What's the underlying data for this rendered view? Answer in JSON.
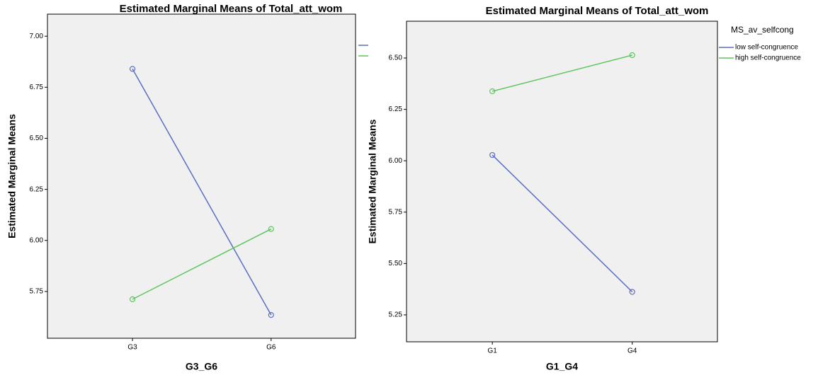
{
  "chart_data": [
    {
      "type": "line",
      "title": "Estimated Marginal Means of Total_att_wom",
      "x_label": "G3_G6",
      "y_label": "Estimated Marginal Means",
      "categories": [
        "G3",
        "G6"
      ],
      "series": [
        {
          "color": "#5b6fc2",
          "values": [
            6.84,
            5.635
          ]
        },
        {
          "color": "#5ec65e",
          "values": [
            5.712,
            6.056
          ]
        }
      ],
      "ylim": [
        5.521,
        7.108
      ],
      "yticks": [
        {
          "value": 5.75,
          "label": "5.75"
        },
        {
          "value": 6,
          "label": "6.00"
        },
        {
          "value": 6.25,
          "label": "6.25"
        },
        {
          "value": 6.5,
          "label": "6.50"
        },
        {
          "value": 6.75,
          "label": "6.75"
        },
        {
          "value": 7,
          "label": "7.00"
        }
      ],
      "grid": false
    },
    {
      "type": "line",
      "title": "Estimated Marginal Means of Total_att_wom",
      "x_label": "G1_G4",
      "y_label": "Estimated Marginal Means",
      "legend_title": "MS_av_selfcong",
      "categories": [
        "G1",
        "G4"
      ],
      "series": [
        {
          "name": "low self-congruence",
          "color": "#5b6fc2",
          "values": [
            6.028,
            5.362
          ]
        },
        {
          "name": "high self-congruence",
          "color": "#5ec65e",
          "values": [
            6.338,
            6.514
          ]
        }
      ],
      "ylim": [
        5.119,
        6.679
      ],
      "yticks": [
        {
          "value": 5.25,
          "label": "5.25"
        },
        {
          "value": 5.5,
          "label": "5.50"
        },
        {
          "value": 5.75,
          "label": "5.75"
        },
        {
          "value": 6,
          "label": "6.00"
        },
        {
          "value": 6.25,
          "label": "6.25"
        },
        {
          "value": 6.5,
          "label": "6.50"
        }
      ],
      "grid": false
    }
  ]
}
